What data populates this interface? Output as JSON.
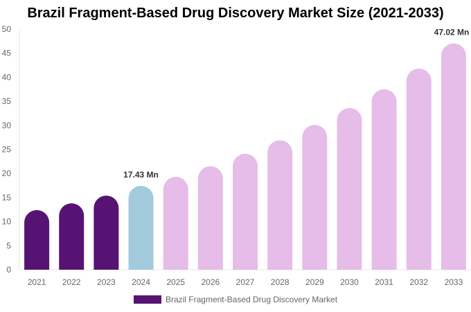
{
  "chart_data": {
    "type": "bar",
    "title": "Brazil Fragment-Based Drug Discovery Market Size (2021-2033)",
    "categories": [
      "2021",
      "2022",
      "2023",
      "2024",
      "2025",
      "2026",
      "2027",
      "2028",
      "2029",
      "2030",
      "2031",
      "2032",
      "2033"
    ],
    "series": [
      {
        "name": "Brazil Fragment-Based Drug Discovery Market",
        "values": [
          12.4,
          13.8,
          15.4,
          17.43,
          19.3,
          21.5,
          24.1,
          26.9,
          30.1,
          33.6,
          37.5,
          41.8,
          47.02
        ]
      }
    ],
    "data_labels": {
      "2024": "17.43 Mn",
      "2033": "47.02 Mn"
    },
    "ylim": [
      0,
      50
    ],
    "yticks": [
      0,
      5,
      10,
      15,
      20,
      25,
      30,
      35,
      40,
      45,
      50
    ],
    "grid": false,
    "legend": "bottom",
    "colors": {
      "historical": "#561373",
      "current": "#a3c9dd",
      "forecast": "#e6bce8"
    },
    "color_groups": [
      "historical",
      "historical",
      "historical",
      "current",
      "forecast",
      "forecast",
      "forecast",
      "forecast",
      "forecast",
      "forecast",
      "forecast",
      "forecast",
      "forecast"
    ]
  }
}
